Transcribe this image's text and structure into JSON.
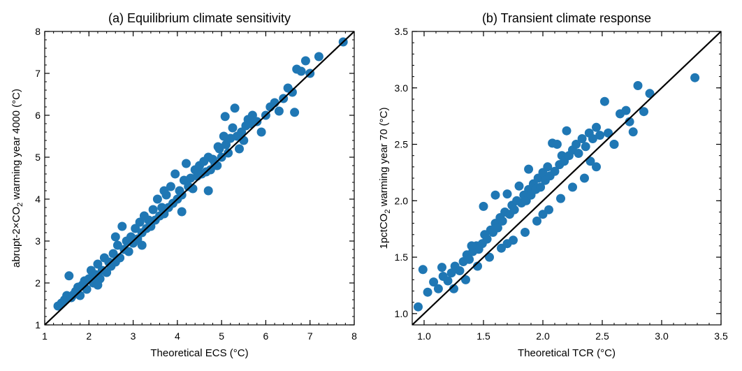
{
  "chart_data": [
    {
      "type": "scatter",
      "title": "(a) Equilibrium climate sensitivity",
      "xlabel": "Theoretical ECS (°C)",
      "ylabel_parts": [
        "abrupt-2×CO",
        "2",
        " warming year 4000 (°C)"
      ],
      "xlim": [
        1,
        8
      ],
      "ylim": [
        1,
        8
      ],
      "xticks": [
        1,
        2,
        3,
        4,
        5,
        6,
        7,
        8
      ],
      "yticks": [
        1,
        2,
        3,
        4,
        5,
        6,
        7,
        8
      ],
      "xtick_labels": [
        "1",
        "2",
        "3",
        "4",
        "5",
        "6",
        "7",
        "8"
      ],
      "ytick_labels": [
        "1",
        "2",
        "3",
        "4",
        "5",
        "6",
        "7",
        "8"
      ],
      "point_color": "#1f77b4",
      "reference_line": "1:1",
      "line_color": "#000000",
      "grid": false,
      "points": [
        [
          1.3,
          1.45
        ],
        [
          1.38,
          1.52
        ],
        [
          1.45,
          1.6
        ],
        [
          1.5,
          1.7
        ],
        [
          1.55,
          2.17
        ],
        [
          1.6,
          1.65
        ],
        [
          1.65,
          1.72
        ],
        [
          1.7,
          1.8
        ],
        [
          1.75,
          1.9
        ],
        [
          1.8,
          1.7
        ],
        [
          1.85,
          1.95
        ],
        [
          1.9,
          2.05
        ],
        [
          1.95,
          1.85
        ],
        [
          2.0,
          2.1
        ],
        [
          2.05,
          2.3
        ],
        [
          2.1,
          2.0
        ],
        [
          2.15,
          2.2
        ],
        [
          2.2,
          2.45
        ],
        [
          2.25,
          2.1
        ],
        [
          2.3,
          2.3
        ],
        [
          2.35,
          2.6
        ],
        [
          2.4,
          2.25
        ],
        [
          2.45,
          2.5
        ],
        [
          2.5,
          2.4
        ],
        [
          2.55,
          2.7
        ],
        [
          2.6,
          2.5
        ],
        [
          2.65,
          2.9
        ],
        [
          2.7,
          2.6
        ],
        [
          2.75,
          3.35
        ],
        [
          2.8,
          2.8
        ],
        [
          2.85,
          3.0
        ],
        [
          2.9,
          2.75
        ],
        [
          2.95,
          3.1
        ],
        [
          3.0,
          2.95
        ],
        [
          3.05,
          3.3
        ],
        [
          3.1,
          3.05
        ],
        [
          3.15,
          3.45
        ],
        [
          3.2,
          3.2
        ],
        [
          3.25,
          3.6
        ],
        [
          3.3,
          3.3
        ],
        [
          3.35,
          3.5
        ],
        [
          3.4,
          3.35
        ],
        [
          3.45,
          3.75
        ],
        [
          3.5,
          3.5
        ],
        [
          3.55,
          4.0
        ],
        [
          3.6,
          3.6
        ],
        [
          3.65,
          3.8
        ],
        [
          3.7,
          3.65
        ],
        [
          3.75,
          4.1
        ],
        [
          3.8,
          3.8
        ],
        [
          3.85,
          4.3
        ],
        [
          3.9,
          3.9
        ],
        [
          3.95,
          4.6
        ],
        [
          4.0,
          4.0
        ],
        [
          4.05,
          4.2
        ],
        [
          4.1,
          4.1
        ],
        [
          4.15,
          4.45
        ],
        [
          4.2,
          4.85
        ],
        [
          4.25,
          4.3
        ],
        [
          4.3,
          4.5
        ],
        [
          4.35,
          4.25
        ],
        [
          4.4,
          4.7
        ],
        [
          4.45,
          4.55
        ],
        [
          4.5,
          4.8
        ],
        [
          4.55,
          4.6
        ],
        [
          4.6,
          4.9
        ],
        [
          4.65,
          4.65
        ],
        [
          4.7,
          5.0
        ],
        [
          4.75,
          4.7
        ],
        [
          4.8,
          4.95
        ],
        [
          4.85,
          4.85
        ],
        [
          4.9,
          4.8
        ],
        [
          4.95,
          5.2
        ],
        [
          5.0,
          5.0
        ],
        [
          5.05,
          5.5
        ],
        [
          5.1,
          5.3
        ],
        [
          5.15,
          5.1
        ],
        [
          5.2,
          5.45
        ],
        [
          5.25,
          5.7
        ],
        [
          5.3,
          6.17
        ],
        [
          5.35,
          5.5
        ],
        [
          5.4,
          5.2
        ],
        [
          5.45,
          5.6
        ],
        [
          5.5,
          5.4
        ],
        [
          5.55,
          5.75
        ],
        [
          5.6,
          5.9
        ],
        [
          5.65,
          5.8
        ],
        [
          5.7,
          6.0
        ],
        [
          5.8,
          5.85
        ],
        [
          5.9,
          5.6
        ],
        [
          6.0,
          6.0
        ],
        [
          6.1,
          6.2
        ],
        [
          6.2,
          6.3
        ],
        [
          6.3,
          6.1
        ],
        [
          6.4,
          6.4
        ],
        [
          6.5,
          6.65
        ],
        [
          6.6,
          6.55
        ],
        [
          6.65,
          6.07
        ],
        [
          6.7,
          7.1
        ],
        [
          6.8,
          7.05
        ],
        [
          6.9,
          7.3
        ],
        [
          7.0,
          7.0
        ],
        [
          7.2,
          7.4
        ],
        [
          7.75,
          7.75
        ],
        [
          2.6,
          3.1
        ],
        [
          3.2,
          2.9
        ],
        [
          4.1,
          3.7
        ],
        [
          4.7,
          4.2
        ],
        [
          2.2,
          1.95
        ],
        [
          3.7,
          4.2
        ],
        [
          5.08,
          5.97
        ],
        [
          4.92,
          5.25
        ]
      ],
      "fit_line": {
        "x": [
          1,
          8
        ],
        "y": [
          1,
          8
        ]
      }
    },
    {
      "type": "scatter",
      "title": "(b) Transient climate response",
      "xlabel": "Theoretical TCR (°C)",
      "ylabel_parts": [
        "1pctCO",
        "2",
        " warming year 70 (°C)"
      ],
      "xlim": [
        0.9,
        3.5
      ],
      "ylim": [
        0.9,
        3.5
      ],
      "xticks": [
        1.0,
        1.5,
        2.0,
        2.5,
        3.0,
        3.5
      ],
      "yticks": [
        1.0,
        1.5,
        2.0,
        2.5,
        3.0,
        3.5
      ],
      "xtick_labels": [
        "1.0",
        "1.5",
        "2.0",
        "2.5",
        "3.0",
        "3.5"
      ],
      "ytick_labels": [
        "1.0",
        "1.5",
        "2.0",
        "2.5",
        "3.0",
        "3.5"
      ],
      "point_color": "#1f77b4",
      "reference_line": "1:1",
      "line_color": "#000000",
      "grid": false,
      "points": [
        [
          0.95,
          1.06
        ],
        [
          0.99,
          1.39
        ],
        [
          1.03,
          1.19
        ],
        [
          1.08,
          1.28
        ],
        [
          1.12,
          1.22
        ],
        [
          1.16,
          1.33
        ],
        [
          1.2,
          1.29
        ],
        [
          1.23,
          1.36
        ],
        [
          1.26,
          1.42
        ],
        [
          1.3,
          1.38
        ],
        [
          1.33,
          1.46
        ],
        [
          1.36,
          1.52
        ],
        [
          1.38,
          1.48
        ],
        [
          1.41,
          1.55
        ],
        [
          1.44,
          1.6
        ],
        [
          1.46,
          1.57
        ],
        [
          1.49,
          1.62
        ],
        [
          1.51,
          1.7
        ],
        [
          1.53,
          1.66
        ],
        [
          1.56,
          1.74
        ],
        [
          1.58,
          1.72
        ],
        [
          1.6,
          1.8
        ],
        [
          1.62,
          1.76
        ],
        [
          1.64,
          1.85
        ],
        [
          1.66,
          1.82
        ],
        [
          1.68,
          1.9
        ],
        [
          1.7,
          2.06
        ],
        [
          1.72,
          1.88
        ],
        [
          1.74,
          1.96
        ],
        [
          1.76,
          1.92
        ],
        [
          1.78,
          2.0
        ],
        [
          1.8,
          2.13
        ],
        [
          1.82,
          1.98
        ],
        [
          1.84,
          2.05
        ],
        [
          1.86,
          2.0
        ],
        [
          1.88,
          2.1
        ],
        [
          1.9,
          2.05
        ],
        [
          1.92,
          2.15
        ],
        [
          1.94,
          2.1
        ],
        [
          1.96,
          2.2
        ],
        [
          1.98,
          2.12
        ],
        [
          2.0,
          2.25
        ],
        [
          2.02,
          2.18
        ],
        [
          2.04,
          2.3
        ],
        [
          2.06,
          2.22
        ],
        [
          2.08,
          2.51
        ],
        [
          2.1,
          2.26
        ],
        [
          2.12,
          2.5
        ],
        [
          2.14,
          2.32
        ],
        [
          2.16,
          2.4
        ],
        [
          2.18,
          2.35
        ],
        [
          2.2,
          2.62
        ],
        [
          2.22,
          2.4
        ],
        [
          2.25,
          2.45
        ],
        [
          2.28,
          2.5
        ],
        [
          2.3,
          2.42
        ],
        [
          2.33,
          2.55
        ],
        [
          2.36,
          2.48
        ],
        [
          2.39,
          2.6
        ],
        [
          2.42,
          2.55
        ],
        [
          2.45,
          2.65
        ],
        [
          2.48,
          2.58
        ],
        [
          2.52,
          2.88
        ],
        [
          2.55,
          2.6
        ],
        [
          2.6,
          2.5
        ],
        [
          2.65,
          2.77
        ],
        [
          2.7,
          2.8
        ],
        [
          2.73,
          2.7
        ],
        [
          2.76,
          2.61
        ],
        [
          2.8,
          3.02
        ],
        [
          2.85,
          2.79
        ],
        [
          2.9,
          2.95
        ],
        [
          3.28,
          3.09
        ],
        [
          1.15,
          1.41
        ],
        [
          1.25,
          1.22
        ],
        [
          1.35,
          1.3
        ],
        [
          1.45,
          1.42
        ],
        [
          1.55,
          1.5
        ],
        [
          1.65,
          1.58
        ],
        [
          1.75,
          1.65
        ],
        [
          1.85,
          1.72
        ],
        [
          1.95,
          1.82
        ],
        [
          2.05,
          1.92
        ],
        [
          2.15,
          2.02
        ],
        [
          2.25,
          2.12
        ],
        [
          2.35,
          2.2
        ],
        [
          2.45,
          2.3
        ],
        [
          1.5,
          1.95
        ],
        [
          1.6,
          2.05
        ],
        [
          1.7,
          1.62
        ],
        [
          2.0,
          1.88
        ],
        [
          2.4,
          2.35
        ],
        [
          1.4,
          1.6
        ],
        [
          1.88,
          2.28
        ],
        [
          2.6,
          2.5
        ]
      ],
      "fit_line": {
        "x": [
          0.9,
          3.5
        ],
        "y": [
          0.9,
          3.5
        ]
      }
    }
  ]
}
